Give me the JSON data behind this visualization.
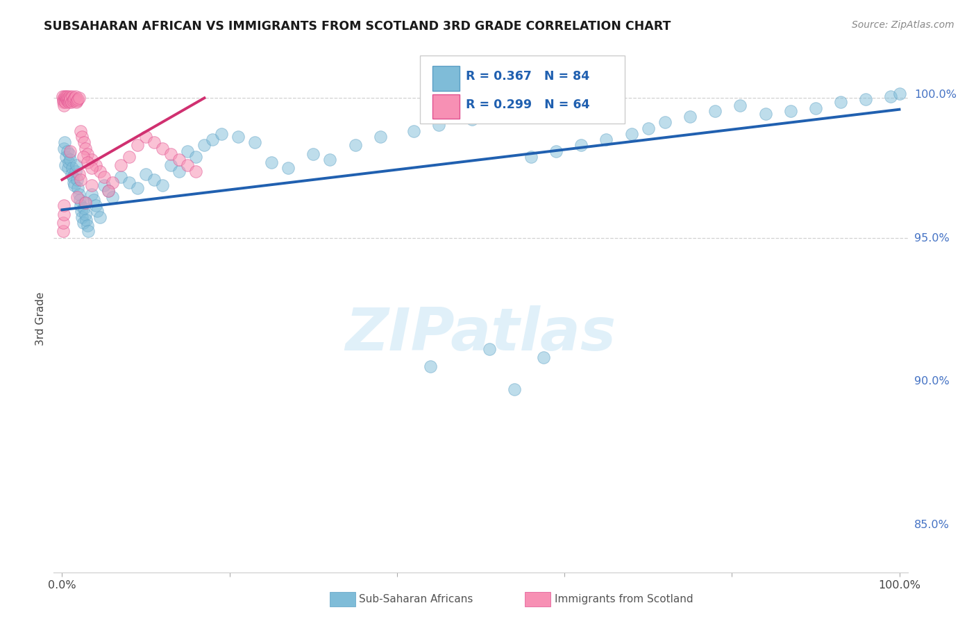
{
  "title": "SUBSAHARAN AFRICAN VS IMMIGRANTS FROM SCOTLAND 3RD GRADE CORRELATION CHART",
  "source_text": "Source: ZipAtlas.com",
  "ylabel": "3rd Grade",
  "xlim_min": -0.01,
  "xlim_max": 1.01,
  "ylim_min": 0.833,
  "ylim_max": 1.01,
  "y_ticks": [
    0.85,
    0.9,
    0.95,
    1.0
  ],
  "y_tick_labels": [
    "85.0%",
    "90.0%",
    "95.0%",
    "100.0%"
  ],
  "x_tick_left": "0.0%",
  "x_tick_right": "100.0%",
  "legend_r1": "R = 0.367",
  "legend_n1": "N = 84",
  "legend_r2": "R = 0.299",
  "legend_n2": "N = 64",
  "blue_color": "#7fbcd8",
  "blue_edge": "#5a9ec4",
  "pink_color": "#f790b4",
  "pink_edge": "#e05090",
  "trend_blue_color": "#2060b0",
  "trend_pink_color": "#d03070",
  "legend_text_color": "#2060b0",
  "bottom_legend_blue": "Sub-Saharan Africans",
  "bottom_legend_pink": "Immigrants from Scotland",
  "blue_trend_x0": 0.0,
  "blue_trend_y0": 0.9595,
  "blue_trend_x1": 1.0,
  "blue_trend_y1": 0.9945,
  "pink_trend_x0": 0.0,
  "pink_trend_y0": 0.97,
  "pink_trend_x1": 0.17,
  "pink_trend_y1": 0.9985,
  "dotted_line_y": 0.9985,
  "dotted_line2_y": 0.9497,
  "blue_x": [
    0.002,
    0.003,
    0.004,
    0.005,
    0.006,
    0.007,
    0.008,
    0.009,
    0.01,
    0.011,
    0.012,
    0.013,
    0.014,
    0.015,
    0.016,
    0.017,
    0.018,
    0.019,
    0.02,
    0.021,
    0.022,
    0.023,
    0.024,
    0.025,
    0.026,
    0.027,
    0.028,
    0.029,
    0.03,
    0.031,
    0.035,
    0.038,
    0.04,
    0.042,
    0.045,
    0.05,
    0.055,
    0.06,
    0.07,
    0.08,
    0.09,
    0.1,
    0.11,
    0.12,
    0.13,
    0.14,
    0.15,
    0.16,
    0.17,
    0.18,
    0.19,
    0.21,
    0.23,
    0.25,
    0.27,
    0.3,
    0.32,
    0.35,
    0.38,
    0.42,
    0.45,
    0.49,
    0.52,
    0.56,
    0.59,
    0.62,
    0.65,
    0.68,
    0.7,
    0.72,
    0.75,
    0.78,
    0.81,
    0.84,
    0.87,
    0.9,
    0.93,
    0.96,
    0.99,
    1.0,
    0.44,
    0.51,
    0.54,
    0.575
  ],
  "blue_y": [
    0.981,
    0.983,
    0.975,
    0.978,
    0.98,
    0.974,
    0.976,
    0.979,
    0.977,
    0.972,
    0.974,
    0.971,
    0.969,
    0.968,
    0.973,
    0.975,
    0.97,
    0.967,
    0.965,
    0.963,
    0.961,
    0.959,
    0.957,
    0.955,
    0.96,
    0.962,
    0.958,
    0.956,
    0.954,
    0.952,
    0.965,
    0.963,
    0.961,
    0.959,
    0.957,
    0.968,
    0.966,
    0.964,
    0.971,
    0.969,
    0.967,
    0.972,
    0.97,
    0.968,
    0.975,
    0.973,
    0.98,
    0.978,
    0.982,
    0.984,
    0.986,
    0.985,
    0.983,
    0.976,
    0.974,
    0.979,
    0.977,
    0.982,
    0.985,
    0.987,
    0.989,
    0.991,
    0.993,
    0.978,
    0.98,
    0.982,
    0.984,
    0.986,
    0.988,
    0.99,
    0.992,
    0.994,
    0.996,
    0.993,
    0.994,
    0.995,
    0.997,
    0.998,
    0.999,
    1.0,
    0.905,
    0.911,
    0.897,
    0.908
  ],
  "pink_x": [
    0.0005,
    0.001,
    0.0015,
    0.002,
    0.0025,
    0.003,
    0.0035,
    0.004,
    0.0045,
    0.005,
    0.0055,
    0.006,
    0.0065,
    0.007,
    0.0075,
    0.008,
    0.0085,
    0.009,
    0.0095,
    0.01,
    0.011,
    0.012,
    0.013,
    0.014,
    0.015,
    0.016,
    0.017,
    0.018,
    0.019,
    0.02,
    0.022,
    0.024,
    0.026,
    0.028,
    0.03,
    0.035,
    0.04,
    0.045,
    0.05,
    0.06,
    0.07,
    0.08,
    0.09,
    0.1,
    0.11,
    0.12,
    0.13,
    0.14,
    0.15,
    0.16,
    0.025,
    0.03,
    0.035,
    0.01,
    0.02,
    0.022,
    0.035,
    0.055,
    0.018,
    0.028,
    0.001,
    0.0015,
    0.002,
    0.0025
  ],
  "pink_y": [
    0.999,
    0.998,
    0.997,
    0.996,
    0.9975,
    0.999,
    0.998,
    0.997,
    0.9985,
    0.999,
    0.998,
    0.9975,
    0.999,
    0.998,
    0.9985,
    0.997,
    0.9975,
    0.999,
    0.9985,
    0.998,
    0.997,
    0.999,
    0.9975,
    0.998,
    0.9985,
    0.999,
    0.997,
    0.9975,
    0.998,
    0.9985,
    0.987,
    0.985,
    0.983,
    0.981,
    0.979,
    0.977,
    0.975,
    0.973,
    0.971,
    0.969,
    0.975,
    0.978,
    0.982,
    0.985,
    0.983,
    0.981,
    0.979,
    0.977,
    0.975,
    0.973,
    0.978,
    0.976,
    0.974,
    0.98,
    0.972,
    0.97,
    0.968,
    0.966,
    0.964,
    0.962,
    0.952,
    0.955,
    0.958,
    0.961
  ]
}
